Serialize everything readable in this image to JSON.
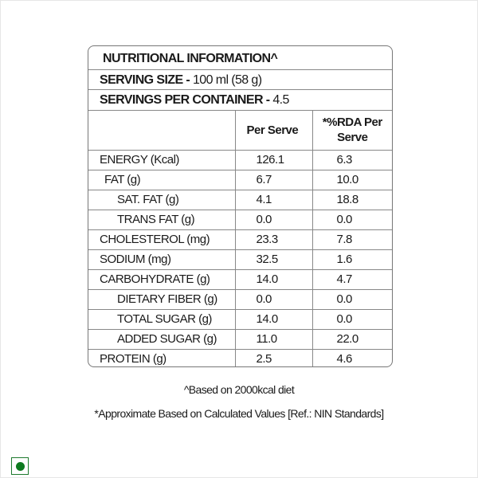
{
  "title": "NUTRITIONAL INFORMATION^",
  "serving_size": {
    "label": "SERVING SIZE -",
    "value": "100 ml (58 g)"
  },
  "servings_per_container": {
    "label": "SERVINGS PER CONTAINER -",
    "value": "4.5"
  },
  "columns": [
    "",
    "Per Serve",
    "*%RDA Per Serve"
  ],
  "rows": [
    {
      "name": "ENERGY (Kcal)",
      "per_serve": "126.1",
      "rda": "6.3",
      "indent": 0
    },
    {
      "name": "FAT (g)",
      "per_serve": "6.7",
      "rda": "10.0",
      "indent": 1
    },
    {
      "name": "SAT. FAT (g)",
      "per_serve": "4.1",
      "rda": "18.8",
      "indent": 2
    },
    {
      "name": "TRANS FAT (g)",
      "per_serve": "0.0",
      "rda": "0.0",
      "indent": 2
    },
    {
      "name": "CHOLESTEROL (mg)",
      "per_serve": "23.3",
      "rda": "7.8",
      "indent": 0
    },
    {
      "name": "SODIUM (mg)",
      "per_serve": "32.5",
      "rda": "1.6",
      "indent": 0
    },
    {
      "name": "CARBOHYDRATE (g)",
      "per_serve": "14.0",
      "rda": "4.7",
      "indent": 0
    },
    {
      "name": "DIETARY FIBER (g)",
      "per_serve": "0.0",
      "rda": "0.0",
      "indent": 2
    },
    {
      "name": "TOTAL SUGAR (g)",
      "per_serve": "14.0",
      "rda": "0.0",
      "indent": 2
    },
    {
      "name": "ADDED SUGAR (g)",
      "per_serve": "11.0",
      "rda": "22.0",
      "indent": 2
    },
    {
      "name": "PROTEIN (g)",
      "per_serve": "2.5",
      "rda": "4.6",
      "indent": 0
    }
  ],
  "footnotes": [
    "^Based on 2000kcal diet",
    "*Approximate Based on Calculated Values  [Ref.: NIN Standards]"
  ],
  "veg_mark": {
    "icon": "veg-symbol-icon",
    "color": "#0d7a1f"
  }
}
